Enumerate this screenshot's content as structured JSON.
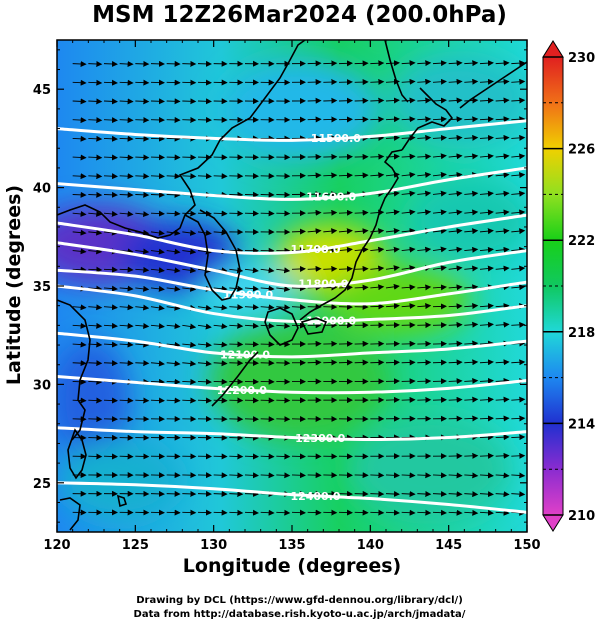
{
  "title": "MSM 12Z26Mar2024 (200.0hPa)",
  "credits": {
    "line1": "Drawing by DCL (https://www.gfd-dennou.org/library/dcl/)",
    "line2": "Data from http://database.rish.kyoto-u.ac.jp/arch/jmadata/"
  },
  "colors": {
    "land_outline": "#000000",
    "contour": "#ffffff",
    "arrows": "#000000"
  },
  "chart_data": {
    "type": "heatmap",
    "xlabel": "Longitude (degrees)",
    "ylabel": "Latitude  (degrees)",
    "xlim": [
      120,
      150
    ],
    "ylim": [
      22.5,
      47.5
    ],
    "x_ticks": [
      120,
      125,
      130,
      135,
      140,
      145,
      150
    ],
    "y_ticks": [
      25,
      30,
      35,
      40,
      45
    ],
    "colorbar": {
      "range": [
        210,
        230
      ],
      "tick_labels": [
        "210",
        "214",
        "218",
        "222",
        "226",
        "230"
      ],
      "tick_values": [
        210,
        214,
        218,
        222,
        226,
        230
      ],
      "shading": "temperature (K)",
      "stops": [
        {
          "value": 210,
          "color": "#e040c8"
        },
        {
          "value": 212,
          "color": "#8a2cd0"
        },
        {
          "value": 214,
          "color": "#2030d0"
        },
        {
          "value": 216,
          "color": "#1e88f0"
        },
        {
          "value": 218,
          "color": "#20d8d8"
        },
        {
          "value": 220,
          "color": "#10c860"
        },
        {
          "value": 222,
          "color": "#18d018"
        },
        {
          "value": 224,
          "color": "#90e020"
        },
        {
          "value": 226,
          "color": "#f0d000"
        },
        {
          "value": 228,
          "color": "#f07018"
        },
        {
          "value": 230,
          "color": "#e02020"
        }
      ]
    },
    "contours": [
      {
        "label": "11500.0",
        "label_lon": 137.8,
        "points": [
          [
            120,
            43.0
          ],
          [
            125,
            42.7
          ],
          [
            130,
            42.5
          ],
          [
            135,
            42.4
          ],
          [
            140,
            42.6
          ],
          [
            145,
            43.0
          ],
          [
            150,
            43.4
          ]
        ]
      },
      {
        "label": "11600.0",
        "label_lon": 137.5,
        "points": [
          [
            120,
            40.2
          ],
          [
            125,
            39.9
          ],
          [
            130,
            39.6
          ],
          [
            135,
            39.4
          ],
          [
            140,
            39.7
          ],
          [
            145,
            40.4
          ],
          [
            150,
            41.0
          ]
        ]
      },
      {
        "label": "11700.0",
        "label_lon": 136.5,
        "points": [
          [
            120,
            38.2
          ],
          [
            125,
            37.6
          ],
          [
            130,
            36.8
          ],
          [
            135,
            36.7
          ],
          [
            140,
            37.3
          ],
          [
            145,
            38.0
          ],
          [
            150,
            38.6
          ]
        ]
      },
      {
        "label": "11800.0",
        "label_lon": 137.0,
        "points": [
          [
            120,
            37.2
          ],
          [
            125,
            36.6
          ],
          [
            130,
            35.8
          ],
          [
            135,
            35.0
          ],
          [
            140,
            35.3
          ],
          [
            145,
            36.2
          ],
          [
            150,
            36.8
          ]
        ]
      },
      {
        "label": "11900.0",
        "label_lon": 132.2,
        "points": [
          [
            120,
            35.8
          ],
          [
            125,
            35.5
          ],
          [
            130,
            34.8
          ],
          [
            135,
            34.3
          ],
          [
            140,
            34.1
          ],
          [
            145,
            34.6
          ],
          [
            150,
            35.2
          ]
        ]
      },
      {
        "label": "12000.0",
        "label_lon": 137.5,
        "points": [
          [
            120,
            35.0
          ],
          [
            125,
            34.5
          ],
          [
            130,
            33.6
          ],
          [
            135,
            33.2
          ],
          [
            140,
            33.3
          ],
          [
            145,
            33.5
          ],
          [
            150,
            34.0
          ]
        ]
      },
      {
        "label": "12100.0",
        "label_lon": 132.0,
        "points": [
          [
            120,
            32.6
          ],
          [
            125,
            32.2
          ],
          [
            130,
            31.6
          ],
          [
            135,
            31.4
          ],
          [
            140,
            31.6
          ],
          [
            145,
            31.8
          ],
          [
            150,
            32.2
          ]
        ]
      },
      {
        "label": "12200.0",
        "label_lon": 131.8,
        "points": [
          [
            120,
            30.4
          ],
          [
            125,
            30.1
          ],
          [
            130,
            29.8
          ],
          [
            135,
            29.6
          ],
          [
            140,
            29.6
          ],
          [
            145,
            29.8
          ],
          [
            150,
            30.2
          ]
        ]
      },
      {
        "label": "12300.0",
        "label_lon": 136.8,
        "points": [
          [
            120,
            27.8
          ],
          [
            125,
            27.6
          ],
          [
            130,
            27.5
          ],
          [
            135,
            27.3
          ],
          [
            140,
            27.2
          ],
          [
            145,
            27.3
          ],
          [
            150,
            27.6
          ]
        ]
      },
      {
        "label": "12400.0",
        "label_lon": 136.5,
        "points": [
          [
            120,
            25.0
          ],
          [
            125,
            24.9
          ],
          [
            130,
            24.7
          ],
          [
            135,
            24.4
          ],
          [
            140,
            24.2
          ],
          [
            145,
            23.9
          ],
          [
            150,
            23.5
          ]
        ]
      }
    ]
  }
}
